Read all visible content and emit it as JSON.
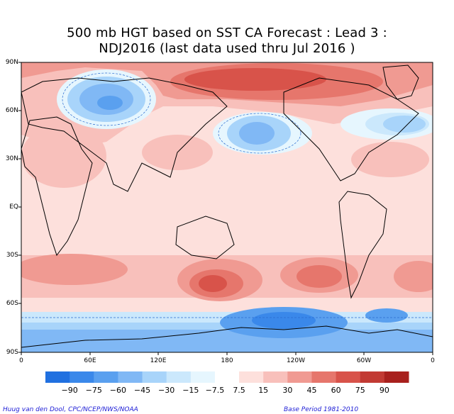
{
  "title": {
    "line1": "500 mb HGT based on SST CA Forecast : Lead 3 :",
    "line2": "NDJ2016 (last data used thru Jul 2016 )"
  },
  "map": {
    "lat_labels": [
      "90N",
      "60N",
      "30N",
      "EQ",
      "30S",
      "60S",
      "90S"
    ],
    "lon_labels": [
      "0",
      "60E",
      "120E",
      "180",
      "120W",
      "60W",
      "0"
    ]
  },
  "colorbar": {
    "labels": [
      "−90",
      "−75",
      "−60",
      "−45",
      "−30",
      "−15",
      "−7.5",
      "7.5",
      "15",
      "30",
      "45",
      "60",
      "75",
      "90"
    ],
    "colors": [
      "#2070e0",
      "#3a88ea",
      "#5aa0ef",
      "#80b8f5",
      "#a8d4fa",
      "#cbe8fc",
      "#e6f6fe",
      "#ffffff",
      "#fde0dc",
      "#f8c0bb",
      "#f09a92",
      "#e6766c",
      "#d8534a",
      "#c23a33",
      "#a8201d"
    ]
  },
  "footer": {
    "credit": "Huug van den Dool, CPC/NCEP/NWS/NOAA",
    "base_period": "Base Period 1981-2010"
  }
}
